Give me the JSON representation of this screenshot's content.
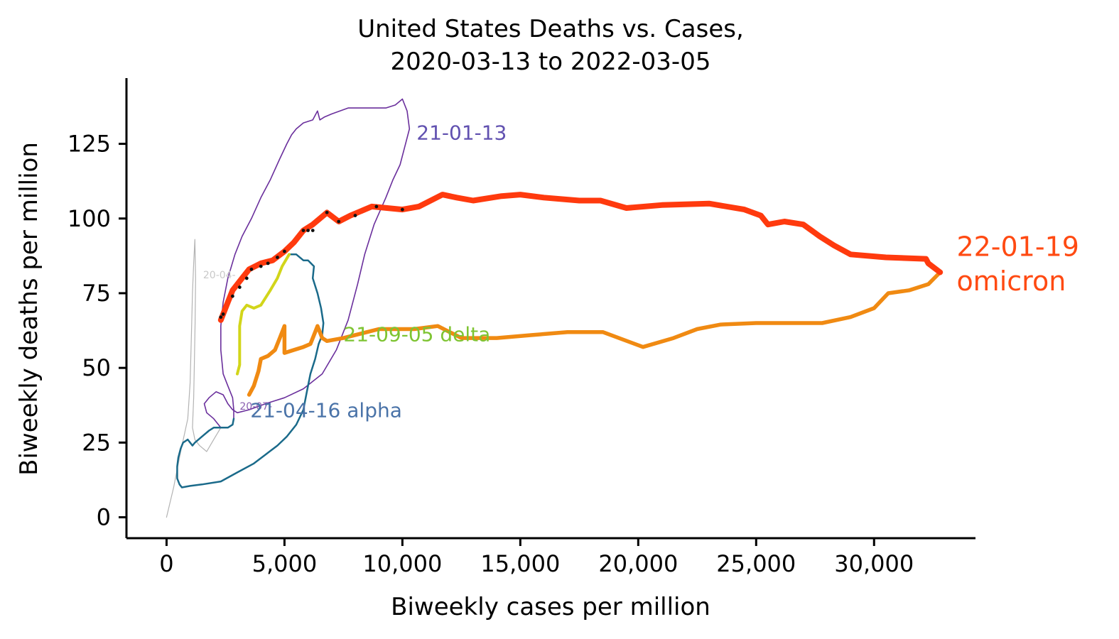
{
  "chart_data": {
    "type": "line",
    "title_line1": "United States Deaths vs. Cases,",
    "title_line2": "2020-03-13 to 2022-03-05",
    "xlabel": "Biweekly cases per million",
    "ylabel": "Biweekly deaths per million",
    "xlim": [
      -1700,
      34300
    ],
    "ylim": [
      -7,
      147
    ],
    "x_ticks": [
      0,
      5000,
      10000,
      15000,
      20000,
      25000,
      30000
    ],
    "x_tick_labels": [
      "0",
      "5,000",
      "10,000",
      "15,000",
      "20,000",
      "25,000",
      "30,000"
    ],
    "y_ticks": [
      0,
      25,
      50,
      75,
      100,
      125
    ],
    "y_tick_labels": [
      "0",
      "25",
      "50",
      "75",
      "100",
      "125"
    ],
    "grid": false,
    "series": [
      {
        "color": "#b3b3b3",
        "width": 1.2,
        "points": [
          [
            0,
            0
          ],
          [
            300,
            10
          ],
          [
            600,
            22
          ],
          [
            900,
            33
          ],
          [
            1000,
            45
          ],
          [
            1050,
            60
          ],
          [
            1100,
            75
          ],
          [
            1150,
            85
          ],
          [
            1200,
            93
          ],
          [
            1230,
            80
          ],
          [
            1210,
            65
          ],
          [
            1180,
            52
          ],
          [
            1150,
            40
          ],
          [
            1100,
            30
          ],
          [
            1200,
            26
          ],
          [
            1400,
            24
          ],
          [
            1700,
            22
          ],
          [
            2000,
            26
          ],
          [
            2300,
            30
          ]
        ]
      },
      {
        "color": "#6a2f9c",
        "width": 1.6,
        "points": [
          [
            2300,
            30
          ],
          [
            2000,
            33
          ],
          [
            1700,
            35
          ],
          [
            1600,
            38
          ],
          [
            1800,
            40
          ],
          [
            2100,
            42
          ],
          [
            2400,
            41
          ],
          [
            2600,
            38
          ],
          [
            2800,
            36
          ],
          [
            3000,
            35
          ],
          [
            3500,
            36
          ],
          [
            4200,
            38
          ],
          [
            5000,
            40
          ],
          [
            5800,
            43
          ],
          [
            6600,
            48
          ],
          [
            7200,
            56
          ],
          [
            7700,
            66
          ],
          [
            8100,
            78
          ],
          [
            8400,
            88
          ],
          [
            8800,
            98
          ],
          [
            9300,
            107
          ],
          [
            9600,
            113
          ],
          [
            9900,
            118
          ],
          [
            10100,
            124
          ],
          [
            10300,
            130
          ],
          [
            10200,
            136
          ],
          [
            10000,
            140
          ],
          [
            9700,
            138
          ],
          [
            9300,
            137
          ],
          [
            8500,
            137
          ],
          [
            7700,
            137
          ],
          [
            7000,
            135
          ],
          [
            6700,
            134
          ],
          [
            6500,
            133
          ],
          [
            6400,
            136
          ],
          [
            6200,
            133
          ],
          [
            5800,
            132
          ],
          [
            5500,
            130
          ],
          [
            5300,
            128
          ],
          [
            5100,
            125
          ],
          [
            4800,
            120
          ],
          [
            4400,
            113
          ],
          [
            4000,
            107
          ],
          [
            3600,
            100
          ],
          [
            3200,
            94
          ],
          [
            2900,
            88
          ],
          [
            2600,
            80
          ],
          [
            2400,
            72
          ],
          [
            2300,
            64
          ],
          [
            2300,
            56
          ],
          [
            2400,
            48
          ],
          [
            2600,
            44
          ],
          [
            2800,
            40
          ],
          [
            2850,
            36
          ],
          [
            2850,
            33
          ]
        ]
      },
      {
        "color": "#1a6a8a",
        "width": 2.5,
        "points": [
          [
            2850,
            33
          ],
          [
            2800,
            31
          ],
          [
            2600,
            30
          ],
          [
            2300,
            30
          ],
          [
            2000,
            30
          ],
          [
            1800,
            29
          ],
          [
            1500,
            27
          ],
          [
            1200,
            25
          ],
          [
            1100,
            24
          ],
          [
            900,
            26
          ],
          [
            700,
            25
          ],
          [
            600,
            23
          ],
          [
            500,
            20
          ],
          [
            450,
            17
          ],
          [
            450,
            13
          ],
          [
            550,
            11
          ],
          [
            650,
            10
          ],
          [
            1000,
            10.5
          ],
          [
            1500,
            11
          ],
          [
            2300,
            12
          ],
          [
            3000,
            15
          ],
          [
            3700,
            18
          ],
          [
            4200,
            21
          ],
          [
            4700,
            24
          ],
          [
            5100,
            27
          ],
          [
            5500,
            31
          ],
          [
            5800,
            36
          ],
          [
            5950,
            42
          ],
          [
            6100,
            48
          ],
          [
            6300,
            53
          ],
          [
            6450,
            58
          ],
          [
            6600,
            61
          ],
          [
            6650,
            65
          ],
          [
            6550,
            70
          ],
          [
            6400,
            75
          ],
          [
            6200,
            80
          ],
          [
            6250,
            84
          ],
          [
            6000,
            86
          ],
          [
            5800,
            86
          ],
          [
            5500,
            88
          ],
          [
            5200,
            88
          ]
        ]
      },
      {
        "color": "#d2d51a",
        "width": 4,
        "points": [
          [
            5200,
            88
          ],
          [
            4900,
            84
          ],
          [
            4700,
            80
          ],
          [
            4400,
            76
          ],
          [
            4000,
            71
          ],
          [
            3700,
            70
          ],
          [
            3400,
            71
          ],
          [
            3200,
            69
          ],
          [
            3100,
            64
          ],
          [
            3100,
            57
          ],
          [
            3100,
            51
          ],
          [
            3000,
            48
          ]
        ]
      },
      {
        "color": "#f08a12",
        "width": 5.5,
        "points": [
          [
            3500,
            41
          ],
          [
            3700,
            44
          ],
          [
            3900,
            49
          ],
          [
            4000,
            53
          ],
          [
            4300,
            54
          ],
          [
            4600,
            56
          ],
          [
            4800,
            60
          ],
          [
            5000,
            64
          ],
          [
            5000,
            55
          ],
          [
            5400,
            56
          ],
          [
            5800,
            57
          ],
          [
            6100,
            58
          ],
          [
            6300,
            62
          ],
          [
            6400,
            64
          ],
          [
            6600,
            60
          ],
          [
            6800,
            59
          ],
          [
            7500,
            60
          ],
          [
            9000,
            63
          ],
          [
            10500,
            63
          ],
          [
            11500,
            64
          ],
          [
            12500,
            60
          ],
          [
            14000,
            60
          ],
          [
            15500,
            61
          ],
          [
            17000,
            62
          ],
          [
            18500,
            62
          ],
          [
            20200,
            57
          ],
          [
            21500,
            60
          ],
          [
            22500,
            63
          ],
          [
            23500,
            64.5
          ],
          [
            25000,
            65
          ],
          [
            27800,
            65
          ],
          [
            29000,
            67
          ],
          [
            30000,
            70
          ],
          [
            30600,
            75
          ],
          [
            31500,
            76
          ],
          [
            32300,
            78
          ],
          [
            32800,
            82
          ]
        ]
      },
      {
        "color": "#ff3a0e",
        "width": 8,
        "points": [
          [
            32800,
            82
          ],
          [
            32300,
            85
          ],
          [
            32200,
            86.5
          ],
          [
            30500,
            87
          ],
          [
            29000,
            88
          ],
          [
            28300,
            91
          ],
          [
            27700,
            94
          ],
          [
            27000,
            98
          ],
          [
            26200,
            99
          ],
          [
            25500,
            98
          ],
          [
            25200,
            101
          ],
          [
            24500,
            103
          ],
          [
            23000,
            105
          ],
          [
            21000,
            104.5
          ],
          [
            19500,
            103.5
          ],
          [
            18400,
            106
          ],
          [
            17500,
            106
          ],
          [
            16000,
            107
          ],
          [
            15000,
            108
          ],
          [
            14200,
            107.5
          ],
          [
            13000,
            106
          ],
          [
            12300,
            107
          ],
          [
            11700,
            108
          ],
          [
            10700,
            104
          ],
          [
            10000,
            103
          ],
          [
            8700,
            104
          ],
          [
            7800,
            101
          ],
          [
            7300,
            99
          ],
          [
            6800,
            102
          ],
          [
            6200,
            98
          ],
          [
            5800,
            96
          ],
          [
            5400,
            92
          ],
          [
            5000,
            89
          ],
          [
            4500,
            86
          ],
          [
            4000,
            85
          ],
          [
            3500,
            83
          ],
          [
            3200,
            80
          ],
          [
            2800,
            76
          ],
          [
            2600,
            72
          ],
          [
            2400,
            68
          ],
          [
            2300,
            66
          ]
        ]
      }
    ],
    "dots": [
      [
        2300,
        67
      ],
      [
        2400,
        68
      ],
      [
        2800,
        74
      ],
      [
        3100,
        77
      ],
      [
        3400,
        80
      ],
      [
        3600,
        83
      ],
      [
        4000,
        84
      ],
      [
        4300,
        85
      ],
      [
        4700,
        87
      ],
      [
        5000,
        89
      ],
      [
        5800,
        96
      ],
      [
        6000,
        96
      ],
      [
        6200,
        96
      ],
      [
        6800,
        102
      ],
      [
        7300,
        99
      ],
      [
        8000,
        101
      ],
      [
        8900,
        104
      ],
      [
        10000,
        103
      ]
    ],
    "annotations": [
      {
        "text": "20-04-",
        "x": 1550,
        "y": 80,
        "color": "#c8c8c8",
        "size": "small"
      },
      {
        "text": "20-07-",
        "x": 3100,
        "y": 36,
        "color": "#8a5fb0",
        "size": "small"
      },
      {
        "text": "21-01-13",
        "x": 10600,
        "y": 126.5,
        "color": "#6151b0",
        "size": "normal"
      },
      {
        "text": "21-04-16 alpha",
        "x": 3550,
        "y": 33.5,
        "color": "#4a73a8",
        "size": "normal"
      },
      {
        "text": "21-09-05 delta",
        "x": 7500,
        "y": 59,
        "color": "#7ec432",
        "size": "normal"
      },
      {
        "text": "22-01-19",
        "x": 33500,
        "y": 87.5,
        "color": "#ff4a12",
        "size": "big"
      },
      {
        "text": "omicron",
        "x": 33500,
        "y": 76,
        "color": "#ff4a12",
        "size": "big"
      }
    ]
  }
}
